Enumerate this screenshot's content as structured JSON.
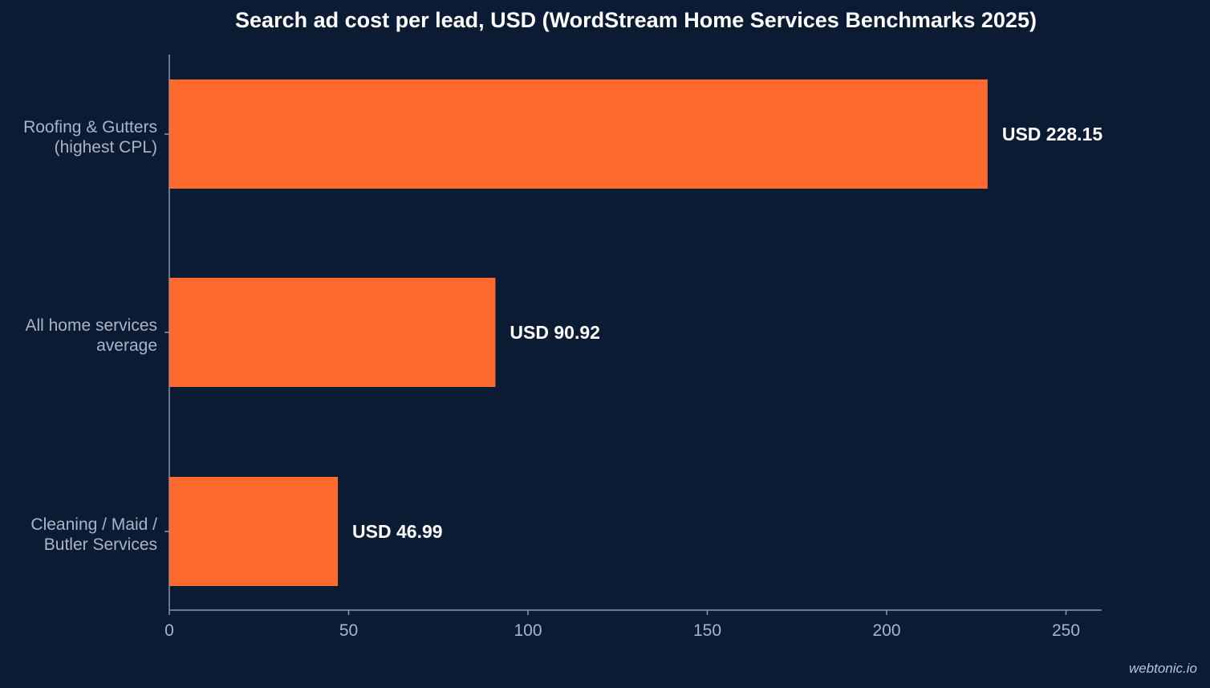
{
  "chart_data": {
    "type": "bar",
    "orientation": "horizontal",
    "title": "Search ad cost per lead, USD (WordStream Home Services Benchmarks 2025)",
    "categories": [
      [
        "Roofing & Gutters",
        "(highest CPL)"
      ],
      [
        "All home services",
        "average"
      ],
      [
        "Cleaning / Maid /",
        "Butler Services"
      ]
    ],
    "values": [
      228.15,
      90.92,
      46.99
    ],
    "value_labels": [
      "USD 228.15",
      "USD 90.92",
      "USD 46.99"
    ],
    "xlim": [
      0,
      260
    ],
    "xticks": [
      0,
      50,
      100,
      150,
      200,
      250
    ],
    "xtick_labels": [
      "0",
      "50",
      "100",
      "150",
      "200",
      "250"
    ],
    "grid": false,
    "colors": {
      "bar": "#ff6b2f",
      "background": "#0c1b34",
      "axis": "#8a97ad",
      "tick_text": "#a9b4c6",
      "label_text": "#ffffff"
    }
  },
  "watermark": "webtonic.io"
}
